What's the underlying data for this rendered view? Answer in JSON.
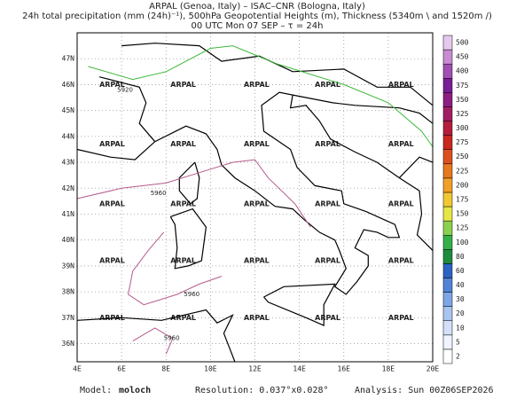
{
  "header": {
    "lines": [
      "ARPAL (Genoa, Italy)  –  ISAC–CNR (Bologna, Italy)",
      "24h total precipitation (mm (24h)⁻¹), 500hPa Geopotential Heights (m), Thickness (5340m \\ and 1520m /)",
      "00 UTC Mon 07 SEP  –  τ = 24h"
    ]
  },
  "map": {
    "xlim": [
      4,
      20
    ],
    "ylim": [
      35.3,
      48
    ],
    "xticks": [
      {
        "value": 4,
        "label": "4E"
      },
      {
        "value": 6,
        "label": "6E"
      },
      {
        "value": 8,
        "label": "8E"
      },
      {
        "value": 10,
        "label": "10E"
      },
      {
        "value": 12,
        "label": "12E"
      },
      {
        "value": 14,
        "label": "14E"
      },
      {
        "value": 16,
        "label": "16E"
      },
      {
        "value": 18,
        "label": "18E"
      },
      {
        "value": 20,
        "label": "20E"
      }
    ],
    "yticks": [
      {
        "value": 36,
        "label": "36N"
      },
      {
        "value": 37,
        "label": "37N"
      },
      {
        "value": 38,
        "label": "38N"
      },
      {
        "value": 39,
        "label": "39N"
      },
      {
        "value": 40,
        "label": "40N"
      },
      {
        "value": 41,
        "label": "41N"
      },
      {
        "value": 42,
        "label": "42N"
      },
      {
        "value": 43,
        "label": "43N"
      },
      {
        "value": 44,
        "label": "44N"
      },
      {
        "value": 45,
        "label": "45N"
      },
      {
        "value": 46,
        "label": "46N"
      },
      {
        "value": 47,
        "label": "47N"
      }
    ],
    "grid": true,
    "watermark": "ARPAL",
    "contours": [
      {
        "label": "5920",
        "color": "#3cb83c"
      },
      {
        "label": "5960",
        "color": "#b45a8c"
      }
    ]
  },
  "colorbar": {
    "levels": [
      2,
      5,
      10,
      20,
      30,
      40,
      60,
      80,
      100,
      125,
      150,
      175,
      200,
      225,
      250,
      275,
      300,
      325,
      350,
      375,
      400,
      450,
      500
    ],
    "colors": [
      "#ffffff",
      "#f0f4ff",
      "#d2e0fa",
      "#aac4f0",
      "#7ea6e6",
      "#5084d8",
      "#2a64c4",
      "#1e8c3c",
      "#34b04a",
      "#8cd050",
      "#e6e646",
      "#f0c832",
      "#f0a028",
      "#e6781e",
      "#dc501e",
      "#c8281e",
      "#b41e3c",
      "#a01e64",
      "#8c1e82",
      "#781e96",
      "#a050b4",
      "#c88cd2",
      "#e6c8ee"
    ]
  },
  "footer": {
    "model_label": "Model:",
    "model": "moloch",
    "resolution": "Resolution: 0.037°x0.028°",
    "analysis": "Analysis: Sun 00Z06SEP2026"
  }
}
